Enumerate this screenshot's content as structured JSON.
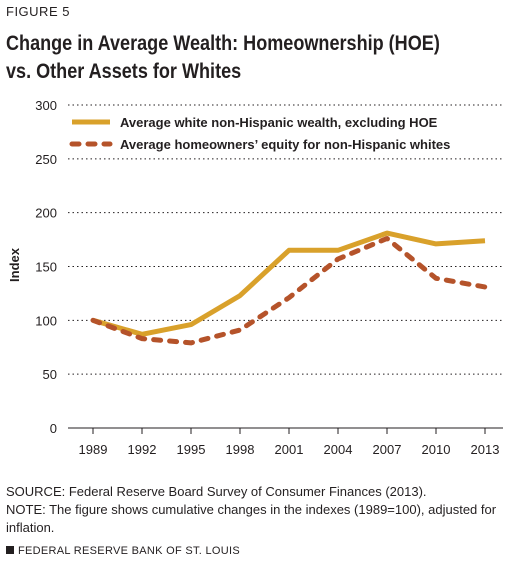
{
  "figure_label": "FIGURE 5",
  "title_line1": "Change in Average Wealth: Homeownership (HOE)",
  "title_line2": "vs. Other Assets for Whites",
  "source": "SOURCE: Federal Reserve Board Survey of Consumer Finances (2013).",
  "note": "NOTE: The figure shows cumulative changes in the indexes (1989=100), adjusted for inflation.",
  "footer": "FEDERAL RESERVE BANK OF ST. LOUIS",
  "chart_data": {
    "type": "line",
    "x": [
      "1989",
      "1992",
      "1995",
      "1998",
      "2001",
      "2004",
      "2007",
      "2010",
      "2013"
    ],
    "ylabel": "Index",
    "xlabel": "",
    "ylim": [
      0,
      300
    ],
    "yticks": [
      0,
      50,
      100,
      150,
      200,
      250,
      300
    ],
    "grid": "horizontal dotted",
    "legend": "top-left",
    "series": [
      {
        "name": "Average white non-Hispanic wealth, excluding HOE",
        "style": "solid",
        "color": "#d9a12b",
        "values": [
          100,
          87,
          96,
          123,
          165,
          165,
          181,
          171,
          174
        ]
      },
      {
        "name": "Average homeowners’ equity for non-Hispanic whites",
        "style": "dashed",
        "color": "#b5532a",
        "values": [
          100,
          83,
          79,
          91,
          121,
          157,
          176,
          139,
          131
        ]
      }
    ]
  }
}
